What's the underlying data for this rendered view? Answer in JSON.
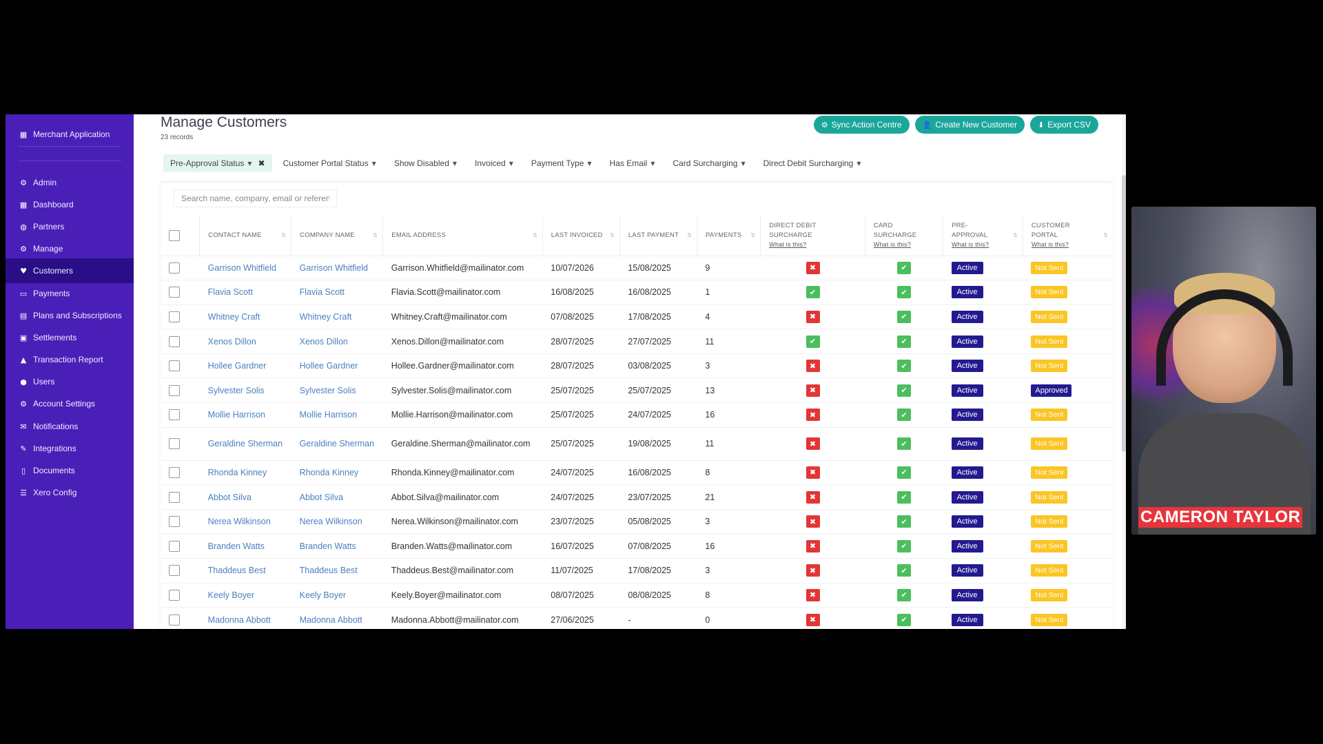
{
  "sidebar": {
    "items": [
      {
        "label": "Merchant Application",
        "icon": "building-icon",
        "active": false
      },
      {
        "label": "Admin",
        "icon": "gear-icon",
        "active": false
      },
      {
        "label": "Dashboard",
        "icon": "grid-icon",
        "active": false
      },
      {
        "label": "Partners",
        "icon": "globe-icon",
        "active": false
      },
      {
        "label": "Manage",
        "icon": "gear-icon",
        "active": false
      },
      {
        "label": "Customers",
        "icon": "heart-icon",
        "active": true
      },
      {
        "label": "Payments",
        "icon": "credit-card-icon",
        "active": false
      },
      {
        "label": "Plans and Subscriptions",
        "icon": "document-icon",
        "active": false
      },
      {
        "label": "Settlements",
        "icon": "money-icon",
        "active": false
      },
      {
        "label": "Transaction Report",
        "icon": "chart-icon",
        "active": false
      },
      {
        "label": "Users",
        "icon": "users-icon",
        "active": false
      },
      {
        "label": "Account Settings",
        "icon": "gear-icon",
        "active": false
      },
      {
        "label": "Notifications",
        "icon": "envelope-icon",
        "active": false
      },
      {
        "label": "Integrations",
        "icon": "pencil-icon",
        "active": false
      },
      {
        "label": "Documents",
        "icon": "file-icon",
        "active": false
      },
      {
        "label": "Xero Config",
        "icon": "list-icon",
        "active": false
      }
    ]
  },
  "header": {
    "title": "Manage Customers",
    "records": "23 records",
    "buttons": {
      "sync": "Sync Action Centre",
      "create": "Create New Customer",
      "export": "Export CSV"
    }
  },
  "filters": [
    {
      "label": "Pre-Approval Status",
      "applied": true
    },
    {
      "label": "Customer Portal Status",
      "applied": false
    },
    {
      "label": "Show Disabled",
      "applied": false
    },
    {
      "label": "Invoiced",
      "applied": false
    },
    {
      "label": "Payment Type",
      "applied": false
    },
    {
      "label": "Has Email",
      "applied": false
    },
    {
      "label": "Card Surcharging",
      "applied": false
    },
    {
      "label": "Direct Debit Surcharging",
      "applied": false
    }
  ],
  "search": {
    "placeholder": "Search name, company, email or reference"
  },
  "table": {
    "headers": {
      "contact": "Contact Name",
      "company": "Company Name",
      "email": "Email Address",
      "last_invoiced": "Last Invoiced",
      "last_payment": "Last Payment",
      "payments": "Payments",
      "dd_line1": "Direct Debit",
      "dd_line2": "Surcharge",
      "card_line1": "Card",
      "card_line2": "Surcharge",
      "pre_line1": "Pre-",
      "pre_line2": "Approval",
      "portal_line1": "Customer",
      "portal_line2": "Portal",
      "what_is_this": "What is this?"
    },
    "rows": [
      {
        "contact": "Garrison Whitfield",
        "company": "Garrison Whitfield",
        "email": "Garrison.Whitfield@mailinator.com",
        "last_invoiced": "10/07/2026",
        "last_payment": "15/08/2025",
        "payments": "9",
        "dd": false,
        "card": true,
        "preapproval": "Active",
        "portal": "Not Sent"
      },
      {
        "contact": "Flavia Scott",
        "company": "Flavia Scott",
        "email": "Flavia.Scott@mailinator.com",
        "last_invoiced": "16/08/2025",
        "last_payment": "16/08/2025",
        "payments": "1",
        "dd": true,
        "card": true,
        "preapproval": "Active",
        "portal": "Not Sent"
      },
      {
        "contact": "Whitney Craft",
        "company": "Whitney Craft",
        "email": "Whitney.Craft@mailinator.com",
        "last_invoiced": "07/08/2025",
        "last_payment": "17/08/2025",
        "payments": "4",
        "dd": false,
        "card": true,
        "preapproval": "Active",
        "portal": "Not Sent"
      },
      {
        "contact": "Xenos Dillon",
        "company": "Xenos Dillon",
        "email": "Xenos.Dillon@mailinator.com",
        "last_invoiced": "28/07/2025",
        "last_payment": "27/07/2025",
        "payments": "11",
        "dd": true,
        "card": true,
        "preapproval": "Active",
        "portal": "Not Sent"
      },
      {
        "contact": "Hollee Gardner",
        "company": "Hollee Gardner",
        "email": "Hollee.Gardner@mailinator.com",
        "last_invoiced": "28/07/2025",
        "last_payment": "03/08/2025",
        "payments": "3",
        "dd": false,
        "card": true,
        "preapproval": "Active",
        "portal": "Not Sent"
      },
      {
        "contact": "Sylvester Solis",
        "company": "Sylvester Solis",
        "email": "Sylvester.Solis@mailinator.com",
        "last_invoiced": "25/07/2025",
        "last_payment": "25/07/2025",
        "payments": "13",
        "dd": false,
        "card": true,
        "preapproval": "Active",
        "portal": "Approved"
      },
      {
        "contact": "Mollie Harrison",
        "company": "Mollie Harrison",
        "email": "Mollie.Harrison@mailinator.com",
        "last_invoiced": "25/07/2025",
        "last_payment": "24/07/2025",
        "payments": "16",
        "dd": false,
        "card": true,
        "preapproval": "Active",
        "portal": "Not Sent"
      },
      {
        "contact": "Geraldine Sherman",
        "company": "Geraldine Sherman",
        "email": "Geraldine.Sherman@mailinator.com",
        "last_invoiced": "25/07/2025",
        "last_payment": "19/08/2025",
        "payments": "11",
        "dd": false,
        "card": true,
        "preapproval": "Active",
        "portal": "Not Sent",
        "tall": true
      },
      {
        "contact": "Rhonda Kinney",
        "company": "Rhonda Kinney",
        "email": "Rhonda.Kinney@mailinator.com",
        "last_invoiced": "24/07/2025",
        "last_payment": "16/08/2025",
        "payments": "8",
        "dd": false,
        "card": true,
        "preapproval": "Active",
        "portal": "Not Sent"
      },
      {
        "contact": "Abbot Silva",
        "company": "Abbot Silva",
        "email": "Abbot.Silva@mailinator.com",
        "last_invoiced": "24/07/2025",
        "last_payment": "23/07/2025",
        "payments": "21",
        "dd": false,
        "card": true,
        "preapproval": "Active",
        "portal": "Not Sent"
      },
      {
        "contact": "Nerea Wilkinson",
        "company": "Nerea Wilkinson",
        "email": "Nerea.Wilkinson@mailinator.com",
        "last_invoiced": "23/07/2025",
        "last_payment": "05/08/2025",
        "payments": "3",
        "dd": false,
        "card": true,
        "preapproval": "Active",
        "portal": "Not Sent"
      },
      {
        "contact": "Branden Watts",
        "company": "Branden Watts",
        "email": "Branden.Watts@mailinator.com",
        "last_invoiced": "16/07/2025",
        "last_payment": "07/08/2025",
        "payments": "16",
        "dd": false,
        "card": true,
        "preapproval": "Active",
        "portal": "Not Sent"
      },
      {
        "contact": "Thaddeus Best",
        "company": "Thaddeus Best",
        "email": "Thaddeus.Best@mailinator.com",
        "last_invoiced": "11/07/2025",
        "last_payment": "17/08/2025",
        "payments": "3",
        "dd": false,
        "card": true,
        "preapproval": "Active",
        "portal": "Not Sent"
      },
      {
        "contact": "Keely Boyer",
        "company": "Keely Boyer",
        "email": "Keely.Boyer@mailinator.com",
        "last_invoiced": "08/07/2025",
        "last_payment": "08/08/2025",
        "payments": "8",
        "dd": false,
        "card": true,
        "preapproval": "Active",
        "portal": "Not Sent"
      },
      {
        "contact": "Madonna Abbott",
        "company": "Madonna Abbott",
        "email": "Madonna.Abbott@mailinator.com",
        "last_invoiced": "27/06/2025",
        "last_payment": "-",
        "payments": "0",
        "dd": false,
        "card": true,
        "preapproval": "Active",
        "portal": "Not Sent"
      }
    ]
  },
  "webcam": {
    "name": "CAMERON TAYLOR"
  },
  "colors": {
    "sidebar": "#4a1fb8",
    "sidebar_active": "#2a0e86",
    "accent_button": "#1aa79a",
    "link": "#4c7fbf",
    "tick": "#4cbe5e",
    "cross": "#e23636",
    "active_badge": "#241a90",
    "not_sent_badge": "#fbc523"
  }
}
